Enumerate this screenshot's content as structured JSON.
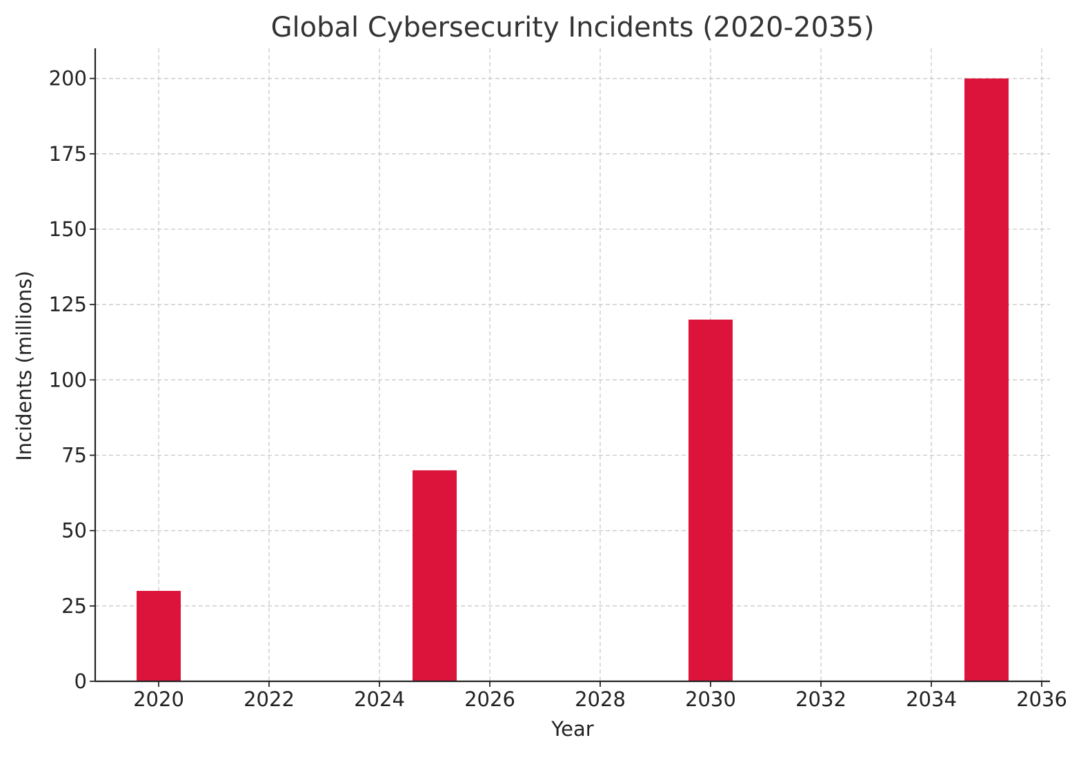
{
  "chart_data": {
    "type": "bar",
    "title": "Global Cybersecurity Incidents (2020-2035)",
    "xlabel": "Year",
    "ylabel": "Incidents (millions)",
    "x": [
      2020,
      2025,
      2030,
      2035
    ],
    "values": [
      30,
      70,
      120,
      200
    ],
    "bar_color": "#dc143c",
    "xlim": [
      2018.85,
      2036.15
    ],
    "ylim": [
      0,
      210
    ],
    "xticks": [
      2020,
      2022,
      2024,
      2026,
      2028,
      2030,
      2032,
      2034,
      2036
    ],
    "yticks": [
      0,
      25,
      50,
      75,
      100,
      125,
      150,
      175,
      200
    ],
    "bar_width_years": 0.8,
    "grid": true,
    "legend": "none"
  }
}
